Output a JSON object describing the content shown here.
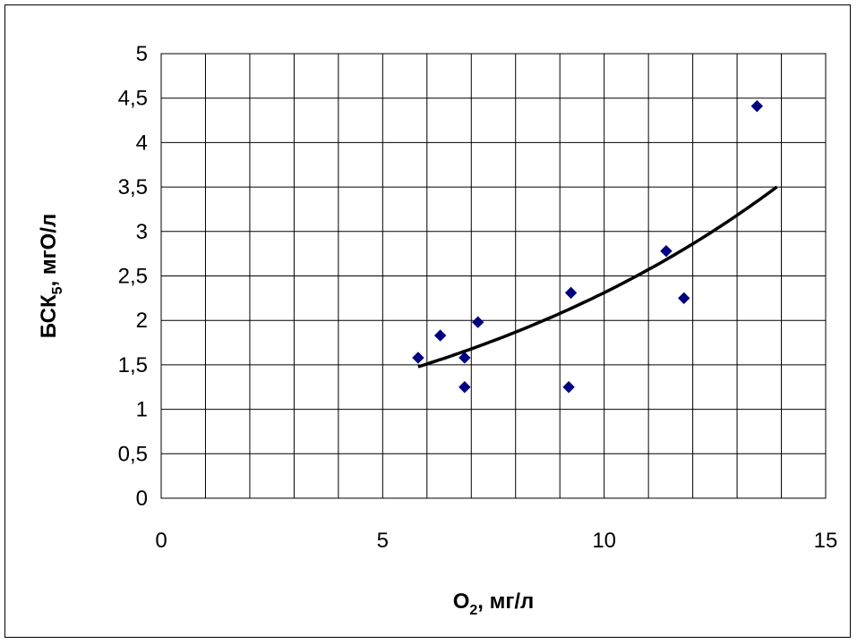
{
  "chart_data": {
    "type": "scatter",
    "xlabel": {
      "main": "O",
      "sub": "2",
      "rest": ", мг/л"
    },
    "ylabel": {
      "main": "БСК",
      "sub": "5",
      "rest": ", мгО/л"
    },
    "xlim": [
      0,
      15
    ],
    "ylim": [
      0,
      5
    ],
    "x_ticks": [
      0,
      5,
      10,
      15
    ],
    "x_tick_labels": [
      "0",
      "5",
      "10",
      "15"
    ],
    "y_ticks": [
      0,
      0.5,
      1,
      1.5,
      2,
      2.5,
      3,
      3.5,
      4,
      4.5,
      5
    ],
    "y_tick_labels": [
      "0",
      "0,5",
      "1",
      "1,5",
      "2",
      "2,5",
      "3",
      "3,5",
      "4",
      "4,5",
      "5"
    ],
    "grid": true,
    "x_grid_step": 1,
    "y_grid_step": 0.5,
    "legend": "none",
    "series": [
      {
        "type": "scatter",
        "marker": "diamond",
        "color": "#000080",
        "points": [
          {
            "x": 5.8,
            "y": 1.58
          },
          {
            "x": 6.3,
            "y": 1.83
          },
          {
            "x": 6.85,
            "y": 1.58
          },
          {
            "x": 6.85,
            "y": 1.25
          },
          {
            "x": 7.15,
            "y": 1.98
          },
          {
            "x": 9.2,
            "y": 1.25
          },
          {
            "x": 9.25,
            "y": 2.31
          },
          {
            "x": 11.4,
            "y": 2.78
          },
          {
            "x": 11.8,
            "y": 2.25
          },
          {
            "x": 13.45,
            "y": 4.41
          }
        ]
      },
      {
        "type": "trendline",
        "kind": "exponential",
        "color": "#000000",
        "x_range": [
          5.8,
          13.9
        ],
        "a": 0.797,
        "b": 0.1065
      }
    ]
  }
}
